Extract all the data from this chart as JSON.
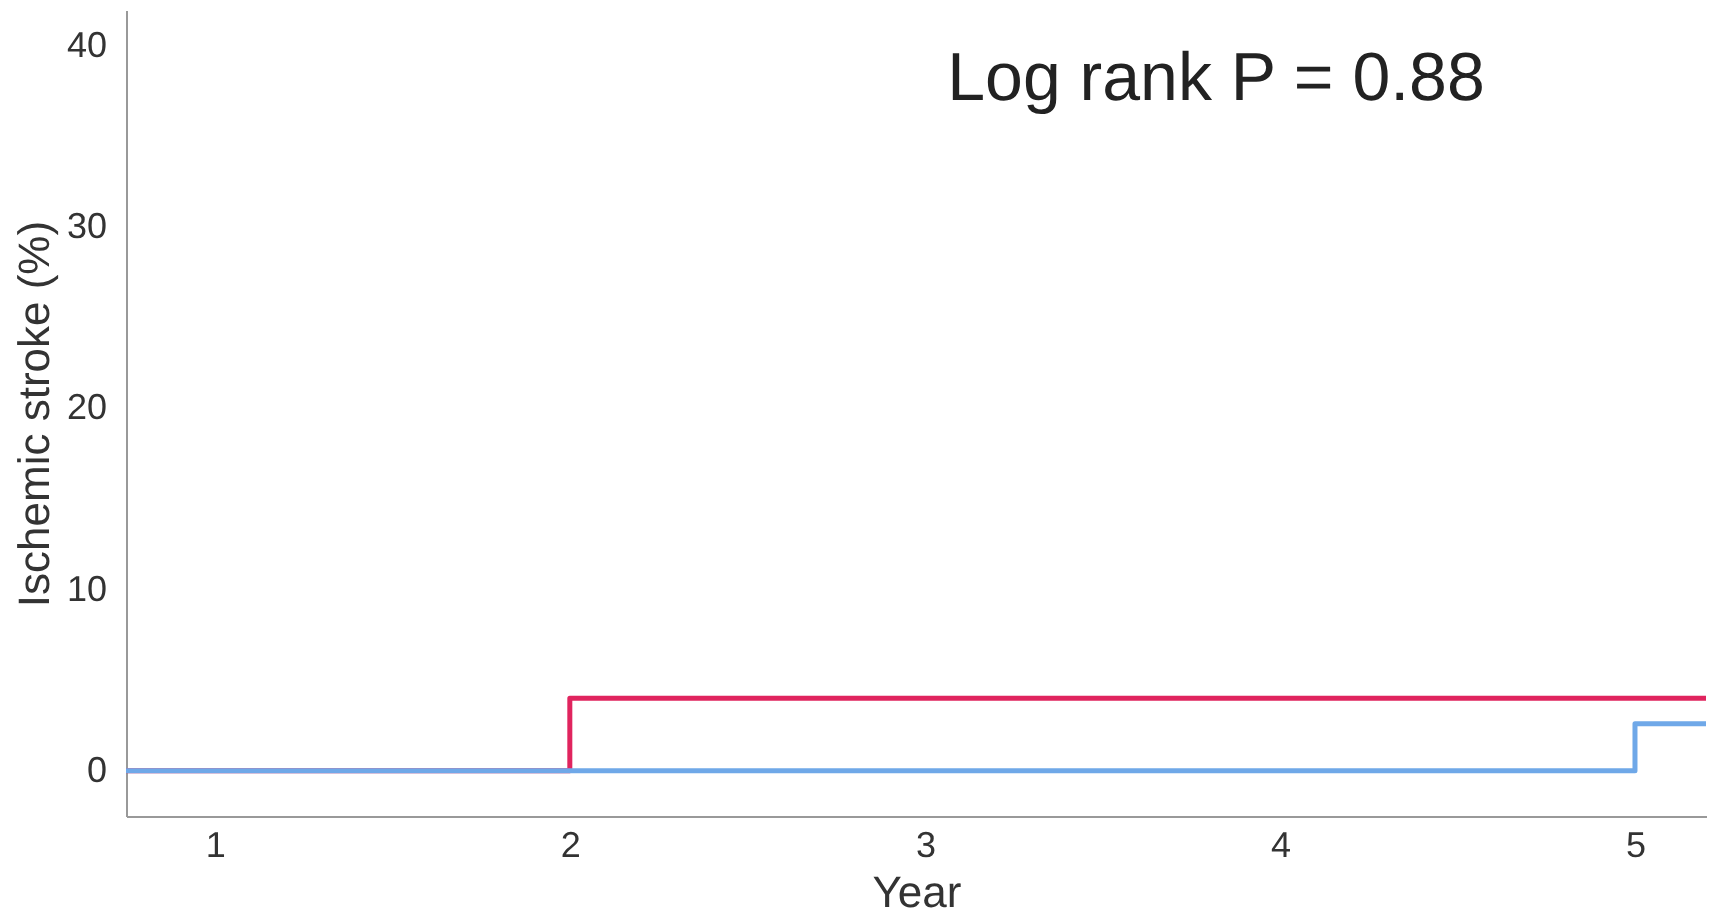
{
  "chart_data": {
    "type": "step",
    "xlabel": "Year",
    "ylabel": "Ischemic stroke (%)",
    "annotations": [
      "Log rank P = 0.88"
    ],
    "series": [
      {
        "color": "#e0245e",
        "x": [
          0.75,
          2,
          5.2
        ],
        "values": [
          0,
          4,
          4
        ]
      },
      {
        "color": "#6fa8e8",
        "x": [
          0.75,
          5,
          5.2
        ],
        "values": [
          0,
          2.6,
          2.6
        ]
      }
    ],
    "xlim": [
      0.75,
      5.2
    ],
    "xticks": [
      1,
      2,
      3,
      4,
      5
    ],
    "ylim": [
      -2.5,
      42
    ],
    "yticks": [
      0,
      10,
      20,
      30,
      40
    ],
    "grid": false
  }
}
